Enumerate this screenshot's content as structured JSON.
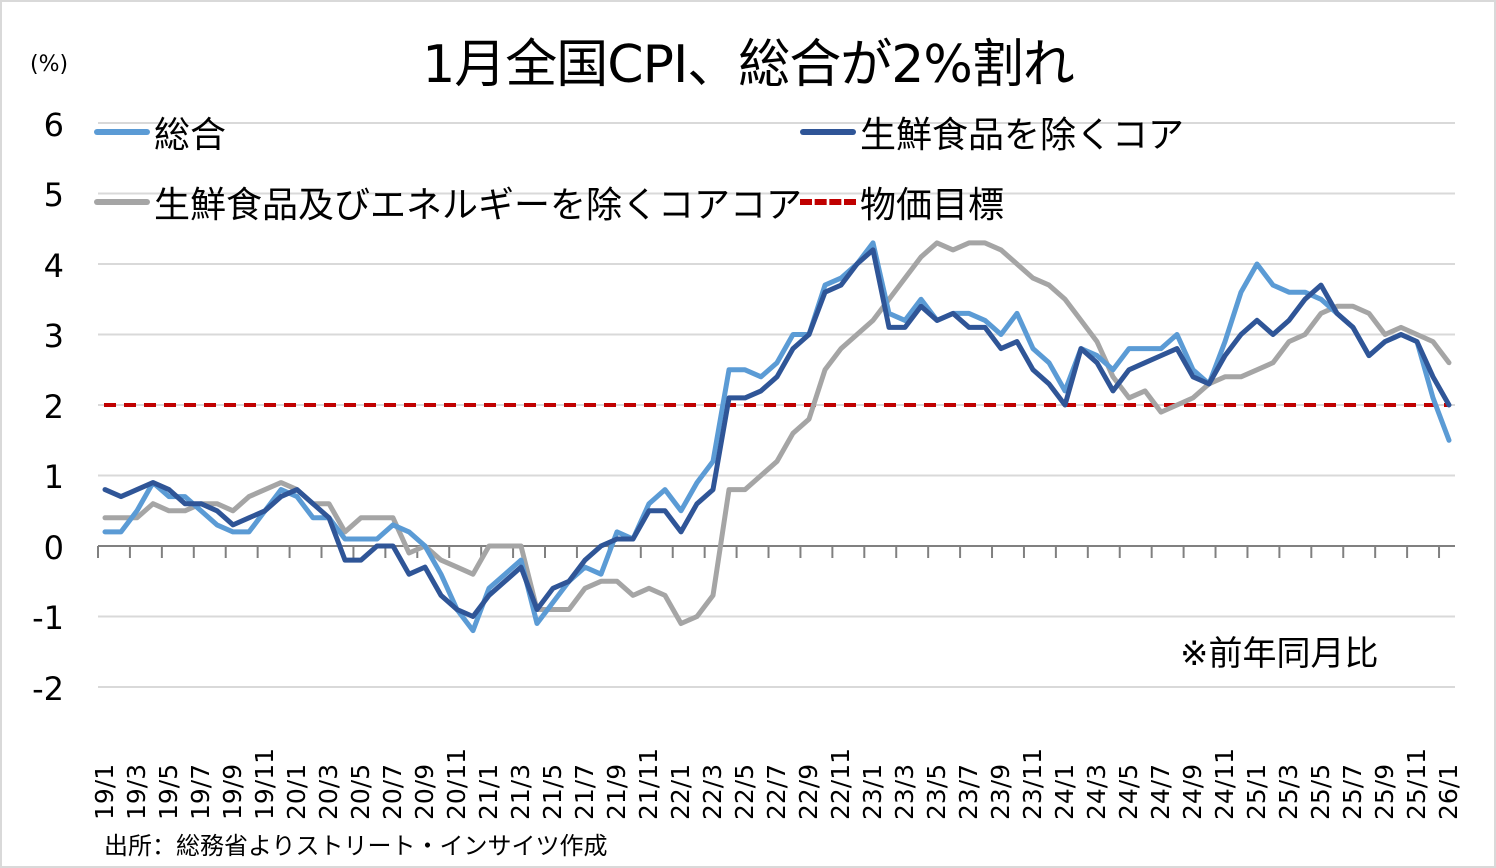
{
  "chart_data": {
    "type": "line",
    "title": "1月全国CPI、総合が2%割れ",
    "ylabel": "(%)",
    "xlabel": "",
    "ylim": [
      -2,
      6
    ],
    "yticks": [
      6,
      5,
      4,
      3,
      2,
      1,
      0,
      -1,
      -2
    ],
    "grid": true,
    "legend_position": "top (inside plot)",
    "annotation": "※前年同月比",
    "source": "出所：総務省よりストリート・インサイツ作成",
    "x": [
      "19/1",
      "19/2",
      "19/3",
      "19/4",
      "19/5",
      "19/6",
      "19/7",
      "19/8",
      "19/9",
      "19/10",
      "19/11",
      "19/12",
      "20/1",
      "20/2",
      "20/3",
      "20/4",
      "20/5",
      "20/6",
      "20/7",
      "20/8",
      "20/9",
      "20/10",
      "20/11",
      "20/12",
      "21/1",
      "21/2",
      "21/3",
      "21/4",
      "21/5",
      "21/6",
      "21/7",
      "21/8",
      "21/9",
      "21/10",
      "21/11",
      "21/12",
      "22/1",
      "22/2",
      "22/3",
      "22/4",
      "22/5",
      "22/6",
      "22/7",
      "22/8",
      "22/9",
      "22/10",
      "22/11",
      "22/12",
      "23/1",
      "23/2",
      "23/3",
      "23/4",
      "23/5",
      "23/6",
      "23/7",
      "23/8",
      "23/9",
      "23/10",
      "23/11",
      "23/12",
      "24/1",
      "24/2",
      "24/3",
      "24/4",
      "24/5",
      "24/6",
      "24/7",
      "24/8",
      "24/9",
      "24/10",
      "24/11",
      "24/12",
      "25/1",
      "25/2",
      "25/3",
      "25/4",
      "25/5",
      "25/6",
      "25/7",
      "25/8",
      "25/9",
      "25/10",
      "25/11",
      "25/12",
      "26/1"
    ],
    "x_tick_labels": [
      "19/1",
      "19/3",
      "19/5",
      "19/7",
      "19/9",
      "19/11",
      "20/1",
      "20/3",
      "20/5",
      "20/7",
      "20/9",
      "20/11",
      "21/1",
      "21/3",
      "21/5",
      "21/7",
      "21/9",
      "21/11",
      "22/1",
      "22/3",
      "22/5",
      "22/7",
      "22/9",
      "22/11",
      "23/1",
      "23/3",
      "23/5",
      "23/7",
      "23/9",
      "23/11",
      "24/1",
      "24/3",
      "24/5",
      "24/7",
      "24/9",
      "24/11",
      "25/1",
      "25/3",
      "25/5",
      "25/7",
      "25/9",
      "25/11",
      "26/1"
    ],
    "series": [
      {
        "name": "総合",
        "color": "#5b9bd5",
        "style": "solid",
        "values": [
          0.2,
          0.2,
          0.5,
          0.9,
          0.7,
          0.7,
          0.5,
          0.3,
          0.2,
          0.2,
          0.5,
          0.8,
          0.7,
          0.4,
          0.4,
          0.1,
          0.1,
          0.1,
          0.3,
          0.2,
          0.0,
          -0.4,
          -0.9,
          -1.2,
          -0.6,
          -0.4,
          -0.2,
          -1.1,
          -0.8,
          -0.5,
          -0.3,
          -0.4,
          0.2,
          0.1,
          0.6,
          0.8,
          0.5,
          0.9,
          1.2,
          2.5,
          2.5,
          2.4,
          2.6,
          3.0,
          3.0,
          3.7,
          3.8,
          4.0,
          4.3,
          3.3,
          3.2,
          3.5,
          3.2,
          3.3,
          3.3,
          3.2,
          3.0,
          3.3,
          2.8,
          2.6,
          2.2,
          2.8,
          2.7,
          2.5,
          2.8,
          2.8,
          2.8,
          3.0,
          2.5,
          2.3,
          2.9,
          3.6,
          4.0,
          3.7,
          3.6,
          3.6,
          3.5,
          3.3,
          3.1,
          2.7,
          2.9,
          3.0,
          2.9,
          2.1,
          1.5
        ]
      },
      {
        "name": "生鮮食品を除くコア",
        "color": "#2f5597",
        "style": "solid",
        "values": [
          0.8,
          0.7,
          0.8,
          0.9,
          0.8,
          0.6,
          0.6,
          0.5,
          0.3,
          0.4,
          0.5,
          0.7,
          0.8,
          0.6,
          0.4,
          -0.2,
          -0.2,
          0.0,
          0.0,
          -0.4,
          -0.3,
          -0.7,
          -0.9,
          -1.0,
          -0.7,
          -0.5,
          -0.3,
          -0.9,
          -0.6,
          -0.5,
          -0.2,
          0.0,
          0.1,
          0.1,
          0.5,
          0.5,
          0.2,
          0.6,
          0.8,
          2.1,
          2.1,
          2.2,
          2.4,
          2.8,
          3.0,
          3.6,
          3.7,
          4.0,
          4.2,
          3.1,
          3.1,
          3.4,
          3.2,
          3.3,
          3.1,
          3.1,
          2.8,
          2.9,
          2.5,
          2.3,
          2.0,
          2.8,
          2.6,
          2.2,
          2.5,
          2.6,
          2.7,
          2.8,
          2.4,
          2.3,
          2.7,
          3.0,
          3.2,
          3.0,
          3.2,
          3.5,
          3.7,
          3.3,
          3.1,
          2.7,
          2.9,
          3.0,
          2.9,
          2.4,
          2.0
        ]
      },
      {
        "name": "生鮮食品及びエネルギーを除くコアコア",
        "color": "#a5a5a5",
        "style": "solid",
        "values": [
          0.4,
          0.4,
          0.4,
          0.6,
          0.5,
          0.5,
          0.6,
          0.6,
          0.5,
          0.7,
          0.8,
          0.9,
          0.8,
          0.6,
          0.6,
          0.2,
          0.4,
          0.4,
          0.4,
          -0.1,
          0.0,
          -0.2,
          -0.3,
          -0.4,
          0.0,
          0.0,
          0.0,
          -0.9,
          -0.9,
          -0.9,
          -0.6,
          -0.5,
          -0.5,
          -0.7,
          -0.6,
          -0.7,
          -1.1,
          -1.0,
          -0.7,
          0.8,
          0.8,
          1.0,
          1.2,
          1.6,
          1.8,
          2.5,
          2.8,
          3.0,
          3.2,
          3.5,
          3.8,
          4.1,
          4.3,
          4.2,
          4.3,
          4.3,
          4.2,
          4.0,
          3.8,
          3.7,
          3.5,
          3.2,
          2.9,
          2.4,
          2.1,
          2.2,
          1.9,
          2.0,
          2.1,
          2.3,
          2.4,
          2.4,
          2.5,
          2.6,
          2.9,
          3.0,
          3.3,
          3.4,
          3.4,
          3.3,
          3.0,
          3.1,
          3.0,
          2.9,
          2.6
        ]
      },
      {
        "name": "物価目標",
        "color": "#c00000",
        "style": "dashed",
        "values": "constant 2.0 across all months"
      }
    ]
  },
  "legend": [
    {
      "label": "総合",
      "color": "#5b9bd5"
    },
    {
      "label": "生鮮食品を除くコア",
      "color": "#2f5597"
    },
    {
      "label": "生鮮食品及びエネルギーを除くコアコア",
      "color": "#a5a5a5"
    },
    {
      "label": "物価目標",
      "color": "#c00000"
    }
  ],
  "yticks_display": [
    "6",
    "5",
    "4",
    "3",
    "2",
    "1",
    "0",
    "-1",
    "-2"
  ]
}
